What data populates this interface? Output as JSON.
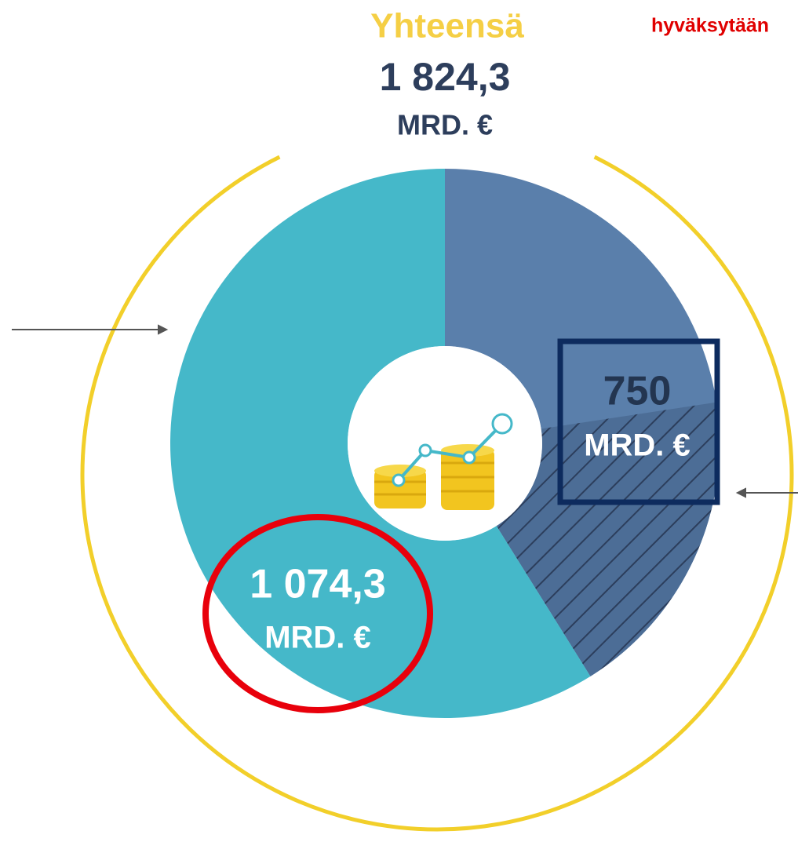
{
  "chart_data": {
    "type": "pie",
    "donut": true,
    "title": "Yhteensä",
    "total": {
      "value": 1824.3,
      "label": "1 824,3"
    },
    "unit": "MRD. €",
    "annotation": "hyväksytään",
    "categories": [
      null,
      null
    ],
    "values": [
      750,
      1074.3
    ],
    "value_labels": [
      "750",
      "1 074,3"
    ],
    "colors": [
      "#5a7fab",
      "#45b8c9"
    ]
  }
}
